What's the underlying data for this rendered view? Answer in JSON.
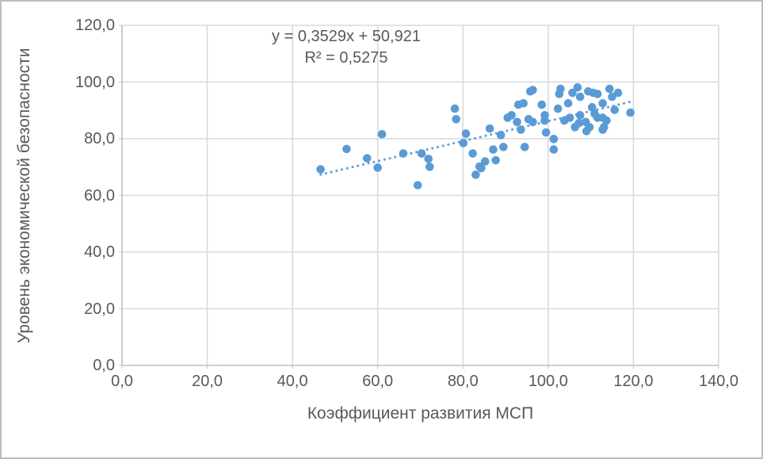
{
  "chart_data": {
    "type": "scatter",
    "title": "",
    "xlabel": "Коэффициент развития МСП",
    "ylabel": "Уровень экономической безопасности",
    "xlim": [
      0,
      140
    ],
    "ylim": [
      0,
      120
    ],
    "grid": true,
    "legend": "none",
    "x_ticks": {
      "values": [
        0,
        20,
        40,
        60,
        80,
        100,
        120,
        140
      ],
      "labels": [
        "0,0",
        "20,0",
        "40,0",
        "60,0",
        "80,0",
        "100,0",
        "120,0",
        "140,0"
      ]
    },
    "y_ticks": {
      "values": [
        0,
        20,
        40,
        60,
        80,
        100,
        120
      ],
      "labels": [
        "0,0",
        "20,0",
        "40,0",
        "60,0",
        "80,0",
        "100,0",
        "120,0"
      ]
    },
    "colors": {
      "marker": "#5B9BD5",
      "trendline": "#5B9BD5",
      "gridline": "#D9D9D9",
      "axis_line": "#BFBFBF",
      "text": "#595959"
    },
    "trendline": {
      "equation": "y = 0,3529x + 50,921",
      "r_squared": "R² = 0,5275",
      "slope": 0.3529,
      "intercept": 50.921,
      "x_start": 46.6,
      "x_end": 119.3,
      "style": "dotted"
    },
    "points": [
      [
        46.6,
        69.2
      ],
      [
        52.7,
        76.4
      ],
      [
        57.5,
        73.1
      ],
      [
        60.0,
        69.8
      ],
      [
        61.0,
        81.6
      ],
      [
        66.0,
        74.8
      ],
      [
        69.4,
        63.6
      ],
      [
        70.3,
        74.8
      ],
      [
        71.9,
        72.9
      ],
      [
        72.2,
        70.1
      ],
      [
        78.1,
        90.6
      ],
      [
        78.4,
        86.9
      ],
      [
        80.1,
        78.5
      ],
      [
        80.7,
        81.8
      ],
      [
        82.3,
        74.8
      ],
      [
        83.0,
        67.3
      ],
      [
        83.9,
        70.2
      ],
      [
        84.3,
        69.6
      ],
      [
        85.2,
        72.0
      ],
      [
        86.3,
        83.6
      ],
      [
        87.1,
        76.2
      ],
      [
        87.7,
        72.4
      ],
      [
        88.9,
        81.3
      ],
      [
        89.5,
        77.1
      ],
      [
        90.5,
        87.4
      ],
      [
        91.4,
        88.3
      ],
      [
        92.7,
        85.9
      ],
      [
        93.0,
        92.0
      ],
      [
        93.6,
        83.2
      ],
      [
        94.2,
        92.5
      ],
      [
        94.5,
        77.1
      ],
      [
        95.4,
        86.9
      ],
      [
        95.8,
        96.7
      ],
      [
        96.4,
        97.2
      ],
      [
        96.4,
        85.9
      ],
      [
        98.5,
        92.0
      ],
      [
        99.2,
        88.3
      ],
      [
        99.2,
        86.4
      ],
      [
        99.5,
        82.2
      ],
      [
        101.3,
        79.9
      ],
      [
        101.3,
        76.2
      ],
      [
        102.3,
        90.6
      ],
      [
        102.6,
        95.8
      ],
      [
        102.9,
        97.6
      ],
      [
        103.8,
        86.4
      ],
      [
        104.7,
        92.5
      ],
      [
        105.1,
        87.4
      ],
      [
        105.7,
        96.2
      ],
      [
        106.3,
        84.1
      ],
      [
        106.9,
        98.1
      ],
      [
        107.2,
        85.5
      ],
      [
        107.5,
        88.3
      ],
      [
        107.5,
        94.8
      ],
      [
        108.8,
        85.9
      ],
      [
        109.0,
        82.7
      ],
      [
        109.4,
        96.7
      ],
      [
        109.7,
        84.1
      ],
      [
        110.3,
        91.1
      ],
      [
        110.6,
        96.2
      ],
      [
        110.9,
        88.8
      ],
      [
        111.6,
        87.4
      ],
      [
        111.6,
        95.8
      ],
      [
        112.8,
        92.5
      ],
      [
        112.8,
        87.4
      ],
      [
        112.8,
        83.2
      ],
      [
        113.1,
        84.1
      ],
      [
        113.7,
        86.4
      ],
      [
        114.4,
        97.6
      ],
      [
        115.0,
        94.8
      ],
      [
        115.6,
        90.2
      ],
      [
        116.4,
        96.2
      ],
      [
        119.3,
        89.2
      ]
    ]
  }
}
